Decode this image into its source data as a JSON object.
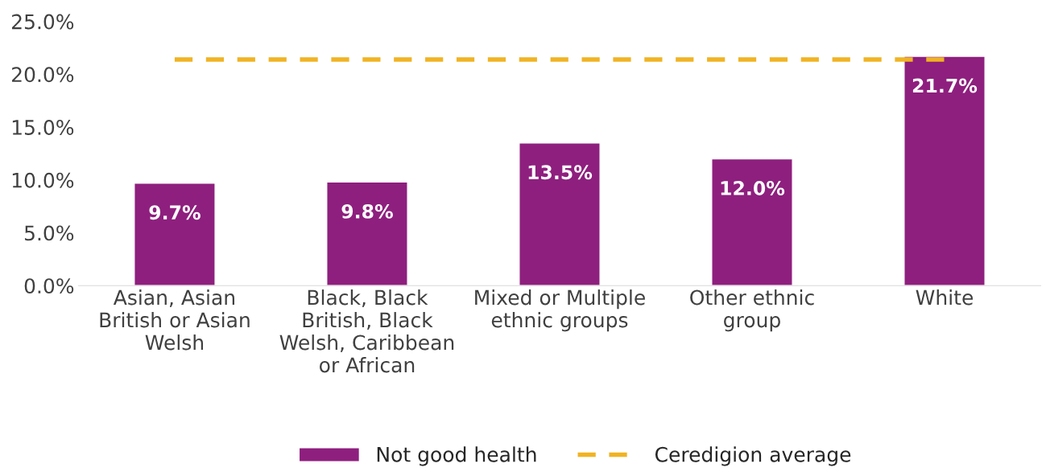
{
  "chart_data": {
    "type": "bar",
    "categories": [
      "Asian, Asian\nBritish or Asian\nWelsh",
      "Black, Black\nBritish, Black\nWelsh, Caribbean\nor African",
      "Mixed or Multiple\nethnic groups",
      "Other ethnic\ngroup",
      "White"
    ],
    "series": [
      {
        "name": "Not good health",
        "color": "#8e1f7e",
        "values": [
          9.7,
          9.8,
          13.5,
          12.0,
          21.7
        ]
      }
    ],
    "value_labels": [
      "9.7%",
      "9.8%",
      "13.5%",
      "12.0%",
      "21.7%"
    ],
    "ref_lines": [
      {
        "axis": "y",
        "value": 21.4,
        "label": "Ceredigion average",
        "color": "#f0b323",
        "line_style": "dashed"
      }
    ],
    "ylim": [
      0,
      25
    ],
    "yticks": [
      {
        "value": 0,
        "label": "0.0%"
      },
      {
        "value": 5,
        "label": "5.0%"
      },
      {
        "value": 10,
        "label": "10.0%"
      },
      {
        "value": 15,
        "label": "15.0%"
      },
      {
        "value": 20,
        "label": "20.0%"
      },
      {
        "value": 25,
        "label": "25.0%"
      }
    ],
    "grid": false,
    "legend": "bottom"
  }
}
